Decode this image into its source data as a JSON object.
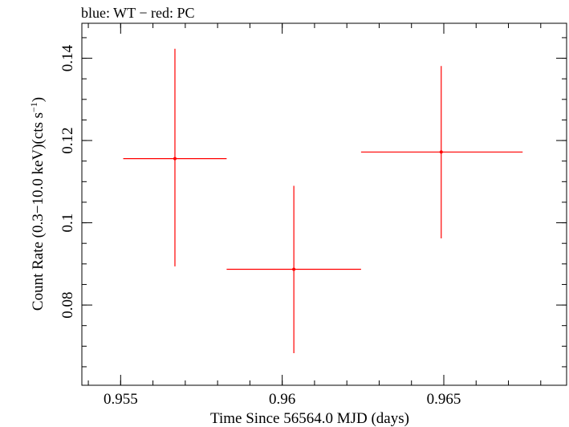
{
  "chart_data": {
    "type": "scatter",
    "title": "blue: WT − red: PC",
    "xlabel": "Time Since 56564.0 MJD (days)",
    "ylabel_main": "Count Rate (0.3−10.0 keV)(cts s",
    "ylabel_sup": "−1",
    "ylabel_end": ")",
    "xlim": [
      0.9538,
      0.9688
    ],
    "ylim": [
      0.0605,
      0.1485
    ],
    "x_ticks": [
      {
        "value": 0.955,
        "label": "0.955"
      },
      {
        "value": 0.96,
        "label": "0.96"
      },
      {
        "value": 0.965,
        "label": "0.965"
      }
    ],
    "x_minor_step": 0.001,
    "y_ticks": [
      {
        "value": 0.08,
        "label": "0.08"
      },
      {
        "value": 0.1,
        "label": "0.1"
      },
      {
        "value": 0.12,
        "label": "0.12"
      },
      {
        "value": 0.14,
        "label": "0.14"
      }
    ],
    "y_minor_step": 0.005,
    "series": [
      {
        "name": "PC",
        "color": "#ff0000",
        "points": [
          {
            "x": 0.95668,
            "y": 0.1156,
            "xerr_low": 0.95508,
            "xerr_high": 0.95828,
            "yerr_low": 0.0894,
            "yerr_high": 0.1423
          },
          {
            "x": 0.96036,
            "y": 0.0887,
            "xerr_low": 0.95828,
            "xerr_high": 0.96244,
            "yerr_low": 0.0683,
            "yerr_high": 0.109
          },
          {
            "x": 0.96492,
            "y": 0.1172,
            "xerr_low": 0.96244,
            "xerr_high": 0.96744,
            "yerr_low": 0.0962,
            "yerr_high": 0.1381
          }
        ]
      }
    ]
  }
}
